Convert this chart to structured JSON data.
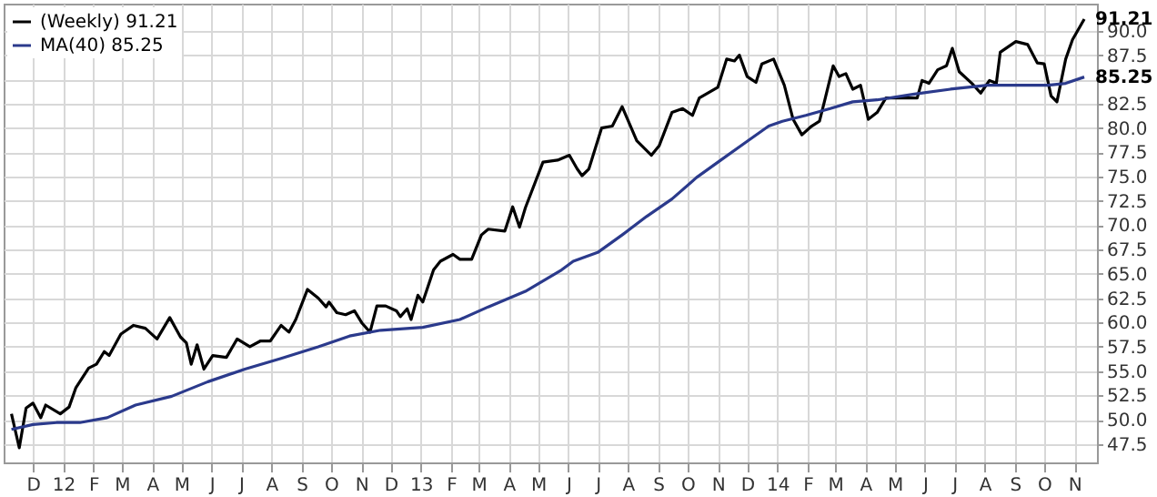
{
  "chart_data": {
    "type": "line",
    "xlim": [
      "2011-11-01",
      "2014-11-24"
    ],
    "ylim": [
      45.6,
      92.8
    ],
    "yticks": [
      47.5,
      {
        "value": 50,
        "label": "50.0"
      },
      52.5,
      {
        "value": 55,
        "label": "55.0"
      },
      57.5,
      {
        "value": 60,
        "label": "60.0"
      },
      62.5,
      {
        "value": 65,
        "label": "65.0"
      },
      67.5,
      {
        "value": 70,
        "label": "70.0"
      },
      72.5,
      {
        "value": 75,
        "label": "75.0"
      },
      77.5,
      {
        "value": 80,
        "label": "80.0"
      },
      82.5,
      {
        "value": 85,
        "label": null
      },
      87.5,
      {
        "value": 90,
        "label": "90.0"
      }
    ],
    "xticks": [
      {
        "value": "2011-12-01",
        "label": "D"
      },
      {
        "value": "2012-01-01",
        "label": "12"
      },
      {
        "value": "2012-02-01",
        "label": "F"
      },
      {
        "value": "2012-03-01",
        "label": "M"
      },
      {
        "value": "2012-04-01",
        "label": "A"
      },
      {
        "value": "2012-05-01",
        "label": "M"
      },
      {
        "value": "2012-06-01",
        "label": "J"
      },
      {
        "value": "2012-07-01",
        "label": "J"
      },
      {
        "value": "2012-08-01",
        "label": "A"
      },
      {
        "value": "2012-09-01",
        "label": "S"
      },
      {
        "value": "2012-10-01",
        "label": "O"
      },
      {
        "value": "2012-11-01",
        "label": "N"
      },
      {
        "value": "2012-12-01",
        "label": "D"
      },
      {
        "value": "2013-01-01",
        "label": "13"
      },
      {
        "value": "2013-02-01",
        "label": "F"
      },
      {
        "value": "2013-03-01",
        "label": "M"
      },
      {
        "value": "2013-04-01",
        "label": "A"
      },
      {
        "value": "2013-05-01",
        "label": "M"
      },
      {
        "value": "2013-06-01",
        "label": "J"
      },
      {
        "value": "2013-07-01",
        "label": "J"
      },
      {
        "value": "2013-08-01",
        "label": "A"
      },
      {
        "value": "2013-09-01",
        "label": "S"
      },
      {
        "value": "2013-10-01",
        "label": "O"
      },
      {
        "value": "2013-11-01",
        "label": "N"
      },
      {
        "value": "2013-12-01",
        "label": "D"
      },
      {
        "value": "2014-01-01",
        "label": "14"
      },
      {
        "value": "2014-02-01",
        "label": "F"
      },
      {
        "value": "2014-03-01",
        "label": "M"
      },
      {
        "value": "2014-04-01",
        "label": "A"
      },
      {
        "value": "2014-05-01",
        "label": "M"
      },
      {
        "value": "2014-06-01",
        "label": "J"
      },
      {
        "value": "2014-07-01",
        "label": "J"
      },
      {
        "value": "2014-08-01",
        "label": "A"
      },
      {
        "value": "2014-09-01",
        "label": "S"
      },
      {
        "value": "2014-10-01",
        "label": "O"
      },
      {
        "value": "2014-11-01",
        "label": "N"
      }
    ],
    "grid": true,
    "legend": "top left",
    "marker": "none",
    "line_style": "solid",
    "series": [
      {
        "name": "(Weekly) 91.21",
        "color": "#000000",
        "x": [
          "2011-11-09",
          "2011-11-17",
          "2011-11-24",
          "2011-12-01",
          "2011-12-09",
          "2011-12-14",
          "2011-12-29",
          "2012-01-07",
          "2012-01-14",
          "2012-01-27",
          "2012-02-04",
          "2012-02-12",
          "2012-02-17",
          "2012-02-29",
          "2012-03-13",
          "2012-03-25",
          "2012-04-06",
          "2012-04-19",
          "2012-04-30",
          "2012-05-06",
          "2012-05-11",
          "2012-05-17",
          "2012-05-24",
          "2012-06-02",
          "2012-06-16",
          "2012-06-27",
          "2012-07-10",
          "2012-07-21",
          "2012-07-31",
          "2012-08-11",
          "2012-08-19",
          "2012-08-26",
          "2012-09-07",
          "2012-09-18",
          "2012-09-26",
          "2012-09-29",
          "2012-10-07",
          "2012-10-16",
          "2012-10-25",
          "2012-11-02",
          "2012-11-10",
          "2012-11-17",
          "2012-11-26",
          "2012-12-07",
          "2012-12-11",
          "2012-12-18",
          "2012-12-22",
          "2012-12-29",
          "2013-01-03",
          "2013-01-14",
          "2013-01-21",
          "2013-02-03",
          "2013-02-10",
          "2013-02-22",
          "2013-03-04",
          "2013-03-11",
          "2013-03-28",
          "2013-04-05",
          "2013-04-12",
          "2013-04-18",
          "2013-05-06",
          "2013-05-21",
          "2013-06-02",
          "2013-06-10",
          "2013-06-15",
          "2013-06-22",
          "2013-07-05",
          "2013-07-16",
          "2013-07-26",
          "2013-08-10",
          "2013-08-25",
          "2013-09-02",
          "2013-09-15",
          "2013-09-26",
          "2013-10-06",
          "2013-10-13",
          "2013-11-01",
          "2013-11-10",
          "2013-11-18",
          "2013-11-23",
          "2013-12-01",
          "2013-12-10",
          "2013-12-16",
          "2013-12-28",
          "2014-01-08",
          "2014-01-17",
          "2014-01-26",
          "2014-02-05",
          "2014-02-13",
          "2014-02-18",
          "2014-02-27",
          "2014-03-05",
          "2014-03-12",
          "2014-03-19",
          "2014-03-27",
          "2014-04-04",
          "2014-04-13",
          "2014-04-22",
          "2014-04-28",
          "2014-05-16",
          "2014-05-24",
          "2014-05-29",
          "2014-06-05",
          "2014-06-14",
          "2014-06-23",
          "2014-06-29",
          "2014-07-06",
          "2014-07-19",
          "2014-07-28",
          "2014-08-06",
          "2014-08-13",
          "2014-08-17",
          "2014-09-02",
          "2014-09-14",
          "2014-09-24",
          "2014-10-01",
          "2014-10-08",
          "2014-10-14",
          "2014-10-23",
          "2014-10-30",
          "2014-11-11"
        ],
        "values": [
          50.6,
          47.1,
          51.2,
          51.7,
          50.2,
          51.5,
          50.6,
          51.3,
          53.3,
          55.3,
          55.7,
          57.0,
          56.6,
          58.8,
          59.7,
          59.4,
          58.3,
          60.5,
          58.5,
          57.9,
          55.7,
          57.7,
          55.2,
          56.6,
          56.4,
          58.3,
          57.5,
          58.1,
          58.1,
          59.7,
          59.0,
          60.3,
          63.4,
          62.5,
          61.6,
          62.1,
          61.0,
          60.8,
          61.2,
          59.9,
          59.0,
          61.7,
          61.7,
          61.2,
          60.6,
          61.4,
          60.3,
          62.8,
          62.1,
          65.4,
          66.3,
          67.0,
          66.5,
          66.5,
          69.0,
          69.6,
          69.4,
          71.9,
          69.8,
          71.8,
          76.5,
          76.7,
          77.2,
          75.8,
          75.1,
          75.8,
          80.0,
          80.2,
          82.2,
          78.7,
          77.2,
          78.2,
          81.6,
          82.0,
          81.3,
          83.1,
          84.2,
          87.1,
          86.9,
          87.5,
          85.3,
          84.7,
          86.6,
          87.1,
          84.4,
          80.9,
          79.3,
          80.2,
          80.7,
          82.7,
          86.4,
          85.3,
          85.6,
          84.0,
          84.4,
          80.9,
          81.6,
          83.1,
          83.1,
          83.1,
          83.1,
          84.9,
          84.6,
          86.0,
          86.4,
          88.2,
          85.8,
          84.6,
          83.6,
          84.9,
          84.6,
          87.8,
          88.9,
          88.6,
          86.7,
          86.6,
          83.3,
          82.7,
          87.1,
          89.1,
          91.21
        ]
      },
      {
        "name": "MA(40) 85.25",
        "color": "#2b3a8c",
        "x": [
          "2011-11-09",
          "2011-12-01",
          "2011-12-25",
          "2012-01-18",
          "2012-02-15",
          "2012-03-15",
          "2012-04-21",
          "2012-05-28",
          "2012-07-05",
          "2012-08-11",
          "2012-09-18",
          "2012-10-20",
          "2012-11-21",
          "2013-01-03",
          "2013-02-10",
          "2013-03-11",
          "2013-04-18",
          "2013-05-25",
          "2013-06-06",
          "2013-07-01",
          "2013-07-26",
          "2013-08-20",
          "2013-09-15",
          "2013-10-10",
          "2013-11-04",
          "2013-11-29",
          "2013-12-23",
          "2014-01-06",
          "2014-01-30",
          "2014-02-24",
          "2014-03-19",
          "2014-04-13",
          "2014-05-21",
          "2014-06-27",
          "2014-08-04",
          "2014-09-11",
          "2014-10-05",
          "2014-10-23",
          "2014-11-11"
        ],
        "values": [
          49.0,
          49.5,
          49.7,
          49.7,
          50.2,
          51.5,
          52.4,
          53.9,
          55.2,
          56.3,
          57.5,
          58.6,
          59.2,
          59.5,
          60.3,
          61.6,
          63.2,
          65.4,
          66.3,
          67.2,
          69.0,
          70.9,
          72.7,
          74.9,
          76.7,
          78.5,
          80.2,
          80.7,
          81.3,
          82.0,
          82.7,
          82.9,
          83.5,
          84.0,
          84.4,
          84.4,
          84.4,
          84.6,
          85.25
        ]
      }
    ],
    "annotations": [
      {
        "text": "91.21",
        "x": "2014-11-11",
        "y": 91.21
      },
      {
        "text": "85.25",
        "x": "2014-11-11",
        "y": 85.25
      }
    ]
  }
}
